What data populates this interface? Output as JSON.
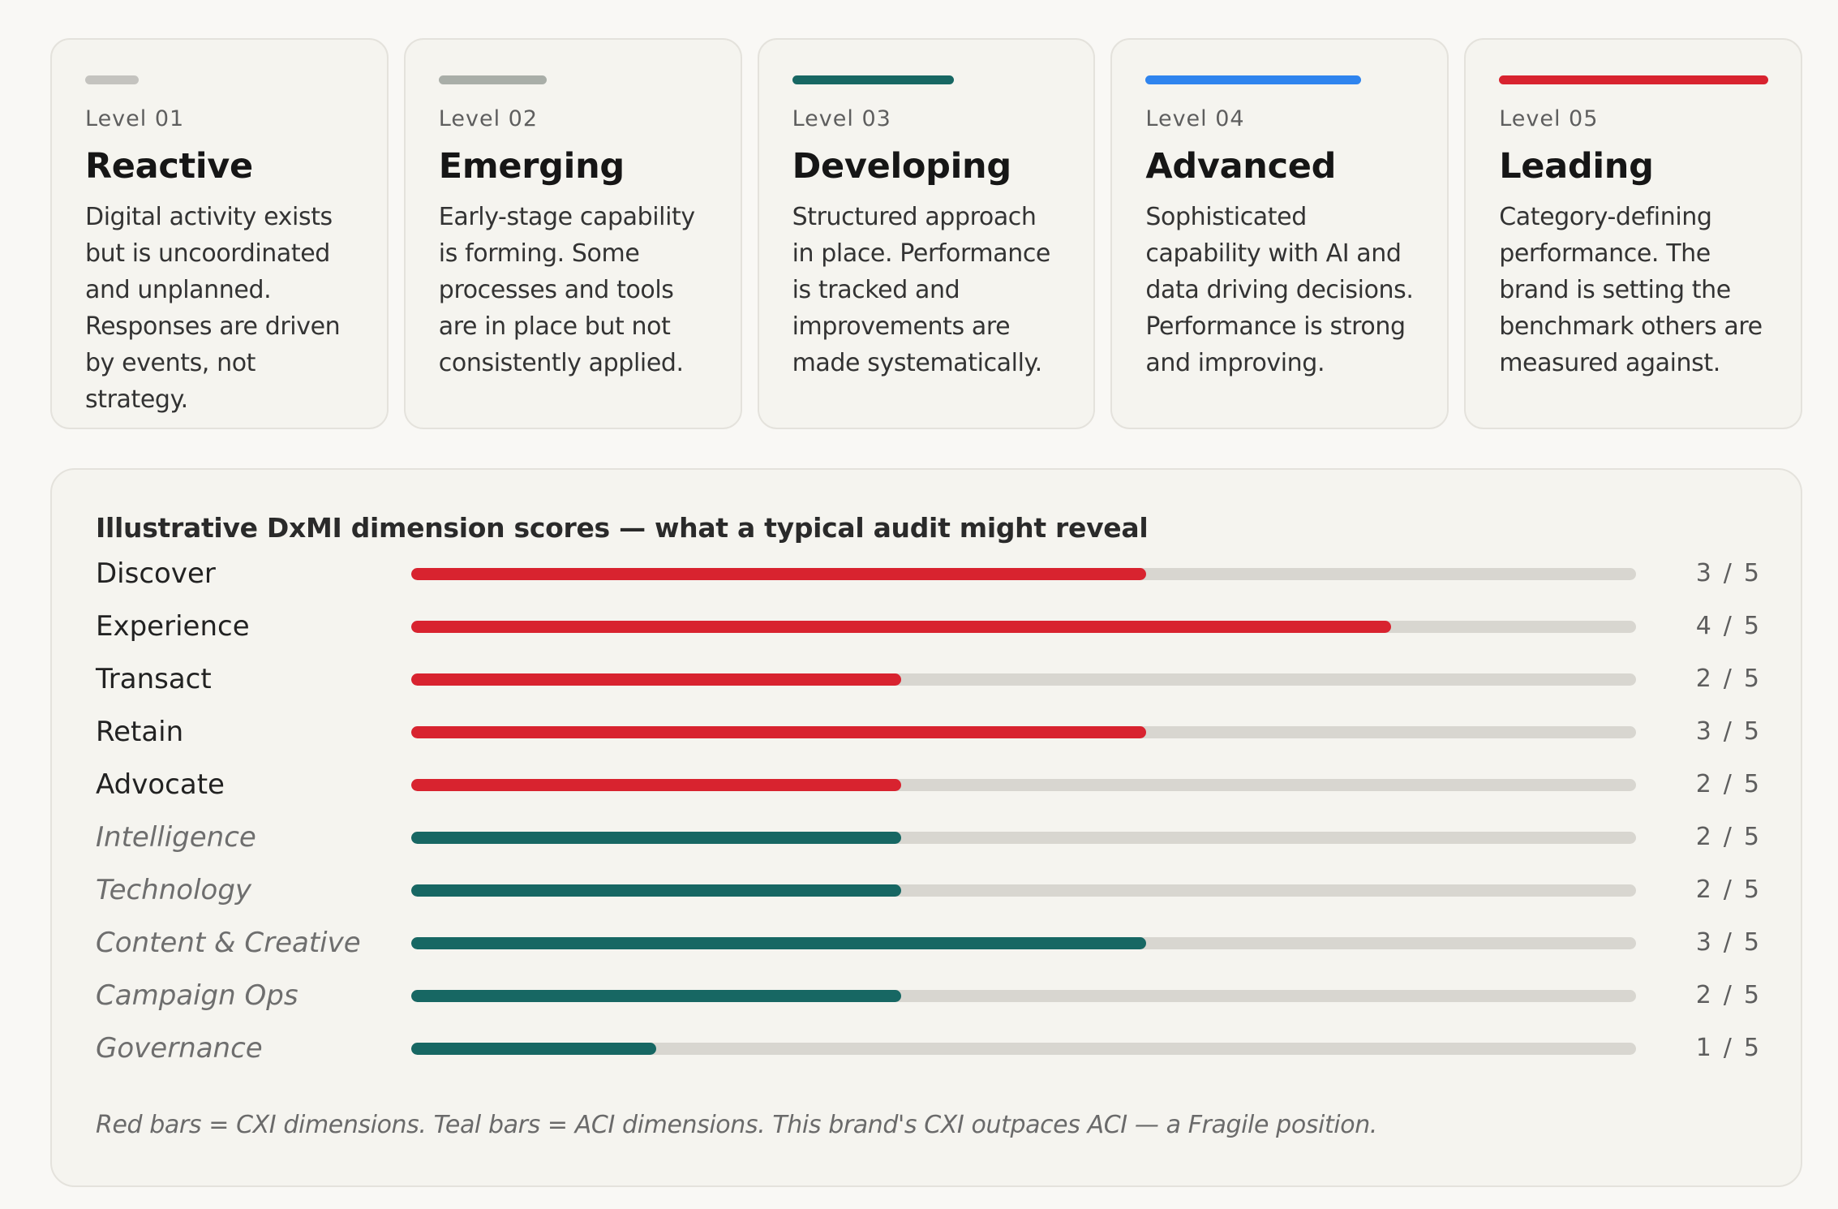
{
  "levels": [
    {
      "number": "Level 01",
      "name": "Reactive",
      "description": "Digital activity exists but is uncoordinated and unplanned. Responses are driven by events, not strategy.",
      "accent_color": "#c4c3bf",
      "accent_fraction": 0.2
    },
    {
      "number": "Level 02",
      "name": "Emerging",
      "description": "Early-stage capability is forming. Some processes and tools are in place but not consistently applied.",
      "accent_color": "#a9aea8",
      "accent_fraction": 0.4
    },
    {
      "number": "Level 03",
      "name": "Developing",
      "description": "Structured approach in place. Performance is tracked and improvements are made systematically.",
      "accent_color": "#176763",
      "accent_fraction": 0.6
    },
    {
      "number": "Level 04",
      "name": "Advanced",
      "description": "Sophisticated capability with AI and data driving decisions. Performance is strong and improving.",
      "accent_color": "#2f84ee",
      "accent_fraction": 0.8
    },
    {
      "number": "Level 05",
      "name": "Leading",
      "description": "Category-defining performance. The brand is setting the benchmark others are measured against.",
      "accent_color": "#d8232f",
      "accent_fraction": 1.0
    }
  ],
  "scores": {
    "title": "Illustrative DxMI dimension scores — what a typical audit might reveal",
    "note": "Red bars = CXI dimensions. Teal bars = ACI dimensions. This brand's CXI outpaces ACI — a Fragile position.",
    "separator": "/"
  },
  "chart_data": {
    "type": "bar",
    "orientation": "horizontal",
    "title": "Illustrative DxMI dimension scores — what a typical audit might reveal",
    "xlim": [
      0,
      5
    ],
    "max_score": 5,
    "colors": {
      "CXI": "#d8232f",
      "ACI": "#176763",
      "track": "#d8d6d0"
    },
    "dimensions": [
      {
        "label": "Discover",
        "value": 3,
        "group": "CXI"
      },
      {
        "label": "Experience",
        "value": 4,
        "group": "CXI"
      },
      {
        "label": "Transact",
        "value": 2,
        "group": "CXI"
      },
      {
        "label": "Retain",
        "value": 3,
        "group": "CXI"
      },
      {
        "label": "Advocate",
        "value": 2,
        "group": "CXI"
      },
      {
        "label": "Intelligence",
        "value": 2,
        "group": "ACI"
      },
      {
        "label": "Technology",
        "value": 2,
        "group": "ACI"
      },
      {
        "label": "Content & Creative",
        "value": 3,
        "group": "ACI"
      },
      {
        "label": "Campaign Ops",
        "value": 2,
        "group": "ACI"
      },
      {
        "label": "Governance",
        "value": 1,
        "group": "ACI"
      }
    ]
  }
}
